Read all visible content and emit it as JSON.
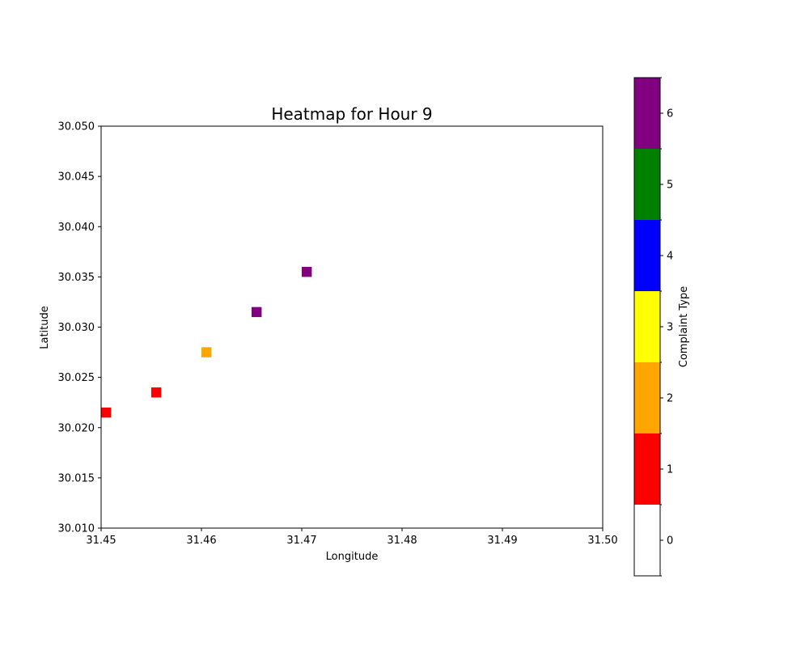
{
  "chart_data": {
    "type": "heatmap",
    "title": "Heatmap for Hour 9",
    "xlabel": "Longitude",
    "ylabel": "Latitude",
    "xlim": [
      31.45,
      31.5
    ],
    "ylim": [
      30.01,
      30.05
    ],
    "x_ticks": [
      "31.45",
      "31.46",
      "31.47",
      "31.48",
      "31.49",
      "31.50"
    ],
    "y_ticks": [
      "30.010",
      "30.015",
      "30.020",
      "30.025",
      "30.030",
      "30.035",
      "30.040",
      "30.045",
      "30.050"
    ],
    "cell_size": 0.001,
    "points": [
      {
        "x": 31.4505,
        "y": 30.0215,
        "type": 1
      },
      {
        "x": 31.4555,
        "y": 30.0235,
        "type": 1
      },
      {
        "x": 31.4605,
        "y": 30.0275,
        "type": 2
      },
      {
        "x": 31.4655,
        "y": 30.0315,
        "type": 6
      },
      {
        "x": 31.4705,
        "y": 30.0355,
        "type": 6
      }
    ],
    "colorbar": {
      "label": "Complaint Type",
      "ticks": [
        "0",
        "1",
        "2",
        "3",
        "4",
        "5",
        "6"
      ],
      "colors": [
        "#ffffff",
        "#ff0000",
        "#ffa500",
        "#ffff00",
        "#0000ff",
        "#008000",
        "#800080"
      ]
    },
    "grid": false
  }
}
